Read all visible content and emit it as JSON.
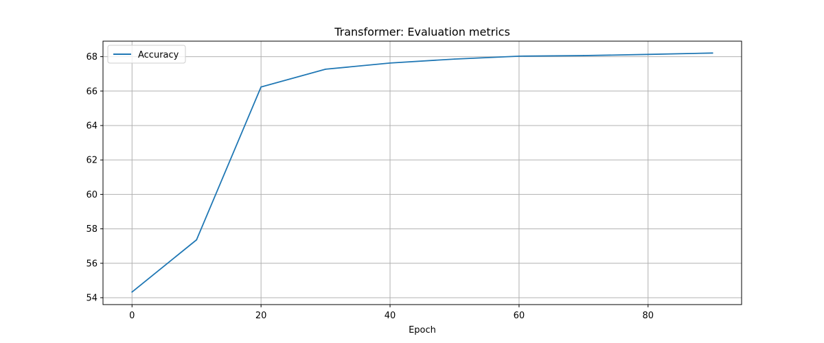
{
  "chart_data": {
    "type": "line",
    "title": "Transformer: Evaluation metrics",
    "xlabel": "Epoch",
    "ylabel": "",
    "x": [
      0,
      10,
      20,
      30,
      40,
      50,
      60,
      70,
      80,
      90
    ],
    "series": [
      {
        "name": "Accuracy",
        "color": "#1f77b4",
        "values": [
          54.33,
          57.36,
          66.24,
          67.27,
          67.63,
          67.86,
          68.03,
          68.06,
          68.13,
          68.21
        ]
      }
    ],
    "xlim": [
      -4.5,
      94.5
    ],
    "ylim": [
      53.6,
      68.9
    ],
    "xticks": [
      0,
      20,
      40,
      60,
      80
    ],
    "yticks": [
      54,
      56,
      58,
      60,
      62,
      64,
      66,
      68
    ],
    "grid": true,
    "legend_position": "top-left"
  }
}
